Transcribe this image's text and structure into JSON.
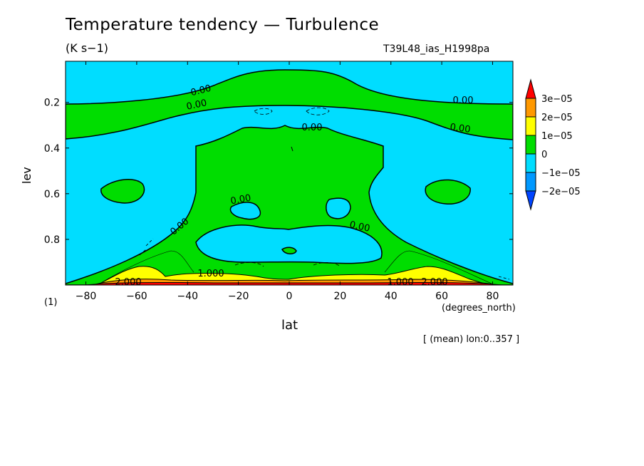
{
  "chart_data": {
    "type": "contour",
    "title": "Temperature tendency — Turbulence",
    "units": "(K s−1)",
    "run_id": "T39L48_ias_H1998pa",
    "xlabel": "lat",
    "xunits": "(degrees_north)",
    "ylabel": "lev",
    "footnote": "(1)",
    "region_note": "[ (mean) lon:0..357 ]",
    "x_ticks": [
      "−80",
      "−60",
      "−40",
      "−20",
      "0",
      "20",
      "40",
      "60",
      "80"
    ],
    "x_tick_values": [
      -80,
      -60,
      -40,
      -20,
      0,
      20,
      40,
      60,
      80
    ],
    "y_ticks": [
      "0.2",
      "0.4",
      "0.6",
      "0.8"
    ],
    "y_tick_values": [
      0.2,
      0.4,
      0.6,
      0.8
    ],
    "xlim": [
      -88,
      88
    ],
    "ylim": [
      1.0,
      0.02
    ],
    "colorbar": {
      "labels": [
        "3e−05",
        "2e−05",
        "1e−05",
        "0",
        "−1e−05",
        "−2e−05"
      ],
      "levels": [
        3e-05,
        2e-05,
        1e-05,
        0,
        -1e-05,
        -2e-05
      ],
      "colors": [
        "#ff0000",
        "#ff9900",
        "#ffff00",
        "#00dd00",
        "#00ddff",
        "#0099ff",
        "#0044ff"
      ]
    },
    "contour_labels": [
      "0.00",
      "0.00",
      "0.00",
      "0.00",
      "0.00",
      "0.00",
      "0.00",
      "0.00",
      "1.000",
      "2.000",
      "1.000",
      "2.000"
    ],
    "background_color": "#00ddff"
  }
}
